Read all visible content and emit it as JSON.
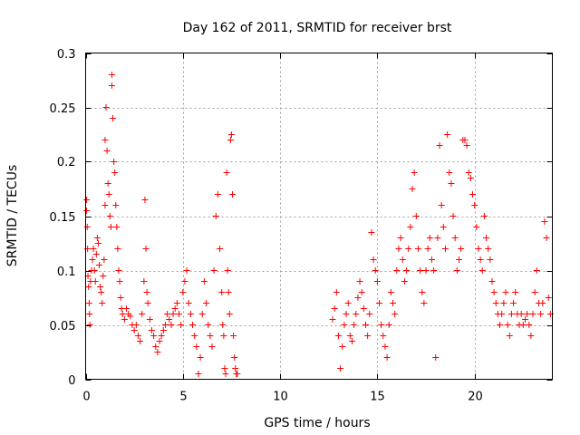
{
  "chart_data": {
    "type": "scatter",
    "title": "Day 162 of 2011, SRMTID for receiver brst",
    "xlabel": "GPS time / hours",
    "ylabel": "SRMTID / TECUs",
    "xlim": [
      0,
      24
    ],
    "ylim": [
      0,
      0.3
    ],
    "xticks": [
      0,
      5,
      10,
      15,
      20
    ],
    "xtick_labels": [
      "0",
      "5",
      "10",
      "15",
      "20"
    ],
    "yticks": [
      0,
      0.05,
      0.1,
      0.15,
      0.2,
      0.25,
      0.3
    ],
    "ytick_labels": [
      "0",
      "0.05",
      "0.1",
      "0.15",
      "0.2",
      "0.25",
      "0.3"
    ],
    "grid": true,
    "marker": "+",
    "color": "#ff0000",
    "series": [
      {
        "name": "SRMTID",
        "points": [
          [
            0.05,
            0.165
          ],
          [
            0.05,
            0.155
          ],
          [
            0.08,
            0.14
          ],
          [
            0.1,
            0.12
          ],
          [
            0.12,
            0.095
          ],
          [
            0.15,
            0.085
          ],
          [
            0.18,
            0.07
          ],
          [
            0.2,
            0.06
          ],
          [
            0.22,
            0.05
          ],
          [
            0.25,
            0.09
          ],
          [
            0.3,
            0.1
          ],
          [
            0.35,
            0.11
          ],
          [
            0.4,
            0.12
          ],
          [
            0.45,
            0.1
          ],
          [
            0.5,
            0.09
          ],
          [
            0.55,
            0.115
          ],
          [
            0.6,
            0.13
          ],
          [
            0.65,
            0.125
          ],
          [
            0.7,
            0.105
          ],
          [
            0.75,
            0.085
          ],
          [
            0.8,
            0.08
          ],
          [
            0.85,
            0.07
          ],
          [
            0.9,
            0.095
          ],
          [
            0.95,
            0.11
          ],
          [
            1.0,
            0.16
          ],
          [
            1.0,
            0.22
          ],
          [
            1.05,
            0.25
          ],
          [
            1.1,
            0.21
          ],
          [
            1.15,
            0.18
          ],
          [
            1.2,
            0.17
          ],
          [
            1.25,
            0.15
          ],
          [
            1.3,
            0.14
          ],
          [
            1.35,
            0.28
          ],
          [
            1.35,
            0.27
          ],
          [
            1.4,
            0.24
          ],
          [
            1.45,
            0.2
          ],
          [
            1.5,
            0.19
          ],
          [
            1.55,
            0.16
          ],
          [
            1.6,
            0.14
          ],
          [
            1.65,
            0.12
          ],
          [
            1.7,
            0.1
          ],
          [
            1.75,
            0.09
          ],
          [
            1.8,
            0.075
          ],
          [
            1.85,
            0.065
          ],
          [
            1.9,
            0.06
          ],
          [
            2.0,
            0.055
          ],
          [
            2.1,
            0.065
          ],
          [
            2.2,
            0.06
          ],
          [
            2.3,
            0.058
          ],
          [
            2.4,
            0.05
          ],
          [
            2.5,
            0.045
          ],
          [
            2.6,
            0.05
          ],
          [
            2.7,
            0.04
          ],
          [
            2.8,
            0.035
          ],
          [
            2.9,
            0.06
          ],
          [
            3.0,
            0.09
          ],
          [
            3.05,
            0.165
          ],
          [
            3.1,
            0.12
          ],
          [
            3.15,
            0.08
          ],
          [
            3.2,
            0.07
          ],
          [
            3.3,
            0.055
          ],
          [
            3.4,
            0.045
          ],
          [
            3.5,
            0.04
          ],
          [
            3.6,
            0.03
          ],
          [
            3.7,
            0.025
          ],
          [
            3.8,
            0.035
          ],
          [
            3.9,
            0.04
          ],
          [
            4.0,
            0.045
          ],
          [
            4.1,
            0.05
          ],
          [
            4.2,
            0.06
          ],
          [
            4.3,
            0.055
          ],
          [
            4.4,
            0.05
          ],
          [
            4.5,
            0.06
          ],
          [
            4.6,
            0.065
          ],
          [
            4.7,
            0.07
          ],
          [
            4.8,
            0.06
          ],
          [
            4.9,
            0.05
          ],
          [
            5.0,
            0.08
          ],
          [
            5.1,
            0.09
          ],
          [
            5.2,
            0.1
          ],
          [
            5.3,
            0.07
          ],
          [
            5.4,
            0.06
          ],
          [
            5.5,
            0.05
          ],
          [
            5.6,
            0.04
          ],
          [
            5.7,
            0.03
          ],
          [
            5.8,
            0.005
          ],
          [
            5.9,
            0.02
          ],
          [
            6.0,
            0.06
          ],
          [
            6.1,
            0.09
          ],
          [
            6.2,
            0.07
          ],
          [
            6.3,
            0.05
          ],
          [
            6.4,
            0.04
          ],
          [
            6.5,
            0.03
          ],
          [
            6.6,
            0.1
          ],
          [
            6.7,
            0.15
          ],
          [
            6.8,
            0.17
          ],
          [
            6.9,
            0.12
          ],
          [
            7.0,
            0.08
          ],
          [
            7.05,
            0.05
          ],
          [
            7.1,
            0.04
          ],
          [
            7.15,
            0.01
          ],
          [
            7.2,
            0.005
          ],
          [
            7.25,
            0.19
          ],
          [
            7.3,
            0.1
          ],
          [
            7.35,
            0.08
          ],
          [
            7.4,
            0.06
          ],
          [
            7.45,
            0.22
          ],
          [
            7.5,
            0.225
          ],
          [
            7.55,
            0.17
          ],
          [
            7.6,
            0.04
          ],
          [
            7.65,
            0.02
          ],
          [
            7.7,
            0.01
          ],
          [
            7.75,
            0.005
          ],
          [
            7.8,
            0.005
          ],
          [
            12.7,
            0.055
          ],
          [
            12.8,
            0.065
          ],
          [
            12.9,
            0.08
          ],
          [
            13.0,
            0.04
          ],
          [
            13.1,
            0.01
          ],
          [
            13.2,
            0.03
          ],
          [
            13.3,
            0.05
          ],
          [
            13.4,
            0.06
          ],
          [
            13.5,
            0.07
          ],
          [
            13.6,
            0.04
          ],
          [
            13.7,
            0.035
          ],
          [
            13.8,
            0.05
          ],
          [
            13.9,
            0.06
          ],
          [
            14.0,
            0.075
          ],
          [
            14.1,
            0.09
          ],
          [
            14.2,
            0.08
          ],
          [
            14.3,
            0.065
          ],
          [
            14.4,
            0.05
          ],
          [
            14.5,
            0.04
          ],
          [
            14.6,
            0.06
          ],
          [
            14.7,
            0.135
          ],
          [
            14.8,
            0.11
          ],
          [
            14.9,
            0.1
          ],
          [
            15.0,
            0.09
          ],
          [
            15.1,
            0.07
          ],
          [
            15.2,
            0.05
          ],
          [
            15.3,
            0.04
          ],
          [
            15.4,
            0.03
          ],
          [
            15.5,
            0.02
          ],
          [
            15.6,
            0.05
          ],
          [
            15.7,
            0.08
          ],
          [
            15.8,
            0.07
          ],
          [
            15.9,
            0.06
          ],
          [
            16.0,
            0.1
          ],
          [
            16.1,
            0.12
          ],
          [
            16.2,
            0.13
          ],
          [
            16.3,
            0.11
          ],
          [
            16.4,
            0.09
          ],
          [
            16.5,
            0.1
          ],
          [
            16.6,
            0.12
          ],
          [
            16.7,
            0.14
          ],
          [
            16.8,
            0.175
          ],
          [
            16.9,
            0.19
          ],
          [
            17.0,
            0.15
          ],
          [
            17.1,
            0.12
          ],
          [
            17.2,
            0.1
          ],
          [
            17.3,
            0.08
          ],
          [
            17.4,
            0.07
          ],
          [
            17.5,
            0.1
          ],
          [
            17.6,
            0.12
          ],
          [
            17.7,
            0.13
          ],
          [
            17.8,
            0.11
          ],
          [
            17.9,
            0.1
          ],
          [
            18.0,
            0.02
          ],
          [
            18.1,
            0.13
          ],
          [
            18.2,
            0.215
          ],
          [
            18.3,
            0.16
          ],
          [
            18.4,
            0.14
          ],
          [
            18.5,
            0.12
          ],
          [
            18.6,
            0.225
          ],
          [
            18.7,
            0.19
          ],
          [
            18.8,
            0.18
          ],
          [
            18.9,
            0.15
          ],
          [
            19.0,
            0.13
          ],
          [
            19.1,
            0.1
          ],
          [
            19.2,
            0.11
          ],
          [
            19.3,
            0.12
          ],
          [
            19.4,
            0.22
          ],
          [
            19.5,
            0.22
          ],
          [
            19.6,
            0.215
          ],
          [
            19.7,
            0.19
          ],
          [
            19.8,
            0.185
          ],
          [
            19.9,
            0.17
          ],
          [
            20.0,
            0.16
          ],
          [
            20.1,
            0.14
          ],
          [
            20.2,
            0.12
          ],
          [
            20.3,
            0.11
          ],
          [
            20.4,
            0.1
          ],
          [
            20.5,
            0.15
          ],
          [
            20.6,
            0.13
          ],
          [
            20.7,
            0.12
          ],
          [
            20.8,
            0.11
          ],
          [
            20.9,
            0.09
          ],
          [
            21.0,
            0.08
          ],
          [
            21.1,
            0.07
          ],
          [
            21.2,
            0.06
          ],
          [
            21.3,
            0.05
          ],
          [
            21.4,
            0.06
          ],
          [
            21.5,
            0.07
          ],
          [
            21.6,
            0.08
          ],
          [
            21.7,
            0.05
          ],
          [
            21.8,
            0.04
          ],
          [
            21.9,
            0.06
          ],
          [
            22.0,
            0.07
          ],
          [
            22.1,
            0.08
          ],
          [
            22.2,
            0.06
          ],
          [
            22.3,
            0.05
          ],
          [
            22.4,
            0.06
          ],
          [
            22.5,
            0.05
          ],
          [
            22.6,
            0.055
          ],
          [
            22.7,
            0.06
          ],
          [
            22.8,
            0.05
          ],
          [
            22.9,
            0.04
          ],
          [
            23.0,
            0.06
          ],
          [
            23.1,
            0.08
          ],
          [
            23.2,
            0.1
          ],
          [
            23.3,
            0.07
          ],
          [
            23.4,
            0.06
          ],
          [
            23.5,
            0.07
          ],
          [
            23.6,
            0.145
          ],
          [
            23.7,
            0.13
          ],
          [
            23.8,
            0.075
          ],
          [
            23.9,
            0.06
          ]
        ]
      }
    ]
  }
}
